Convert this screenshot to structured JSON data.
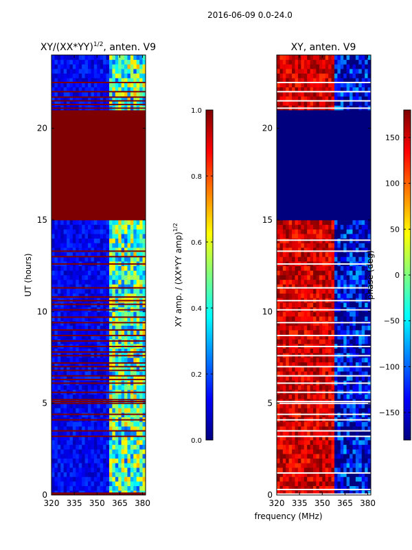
{
  "chart_data": [
    {
      "type": "heatmap",
      "title": "XY/(XX*YY)",
      "title_exp": "1/2",
      "title_suffix": ", anten. V9",
      "xlabel": "frequency (MHz)",
      "ylabel": "UT (hours)",
      "xlim": [
        320,
        382
      ],
      "ylim": [
        0,
        24
      ],
      "xticks": [
        "320",
        "335",
        "350",
        "365",
        "380"
      ],
      "xtick_values": [
        320,
        335,
        350,
        365,
        380
      ],
      "yticks": [
        "0",
        "5",
        "10",
        "15",
        "20"
      ],
      "ytick_values": [
        0,
        5,
        10,
        15,
        20
      ],
      "colorbar": {
        "label": "XY amp. / (XX*YY amp)",
        "label_exp": "1/2",
        "range": [
          0.0,
          1.0
        ],
        "ticks": [
          "0.0",
          "0.2",
          "0.4",
          "0.6",
          "0.8",
          "1.0"
        ],
        "tick_values": [
          0.0,
          0.2,
          0.4,
          0.6,
          0.8,
          1.0
        ]
      },
      "saturated_block_hours": [
        15.0,
        20.8
      ],
      "saturated_value": 1.0,
      "flagged_hours": [
        0.05,
        0.1,
        3.2,
        3.5,
        4.1,
        4.4,
        5.0,
        5.1,
        5.2,
        5.6,
        6.1,
        6.3,
        6.5,
        6.8,
        7.0,
        7.2,
        7.6,
        7.8,
        8.1,
        8.4,
        8.7,
        9.0,
        9.4,
        9.7,
        10.1,
        10.4,
        10.6,
        10.8,
        11.3,
        12.6,
        13.0,
        13.3,
        21.1,
        21.3,
        21.5,
        21.7,
        22.0,
        22.5
      ],
      "low_band_mhz": [
        320,
        357
      ],
      "low_band_typical_value": 0.12,
      "high_band_mhz": [
        357,
        382
      ],
      "high_band_typical_value": 0.45
    },
    {
      "type": "heatmap",
      "title": "XY, anten. V9",
      "xlabel": "frequency (MHz)",
      "ylabel": "",
      "xlim": [
        320,
        382
      ],
      "ylim": [
        0,
        24
      ],
      "xticks": [
        "320",
        "335",
        "350",
        "365",
        "380"
      ],
      "xtick_values": [
        320,
        335,
        350,
        365,
        380
      ],
      "yticks": [
        "0",
        "5",
        "10",
        "15",
        "20"
      ],
      "ytick_values": [
        0,
        5,
        10,
        15,
        20
      ],
      "colorbar": {
        "label": "phase (deg)",
        "range": [
          -180,
          180
        ],
        "ticks": [
          "−150",
          "−100",
          "−50",
          "0",
          "50",
          "100",
          "150"
        ],
        "tick_values": [
          -150,
          -100,
          -50,
          0,
          50,
          100,
          150
        ]
      },
      "blank_block_hours": [
        15.0,
        20.8
      ],
      "blank_value": -180,
      "flagged_hours": [
        0.05,
        0.3,
        1.2,
        3.2,
        3.5,
        4.1,
        4.4,
        5.0,
        5.1,
        5.6,
        6.1,
        6.5,
        7.0,
        7.6,
        8.1,
        8.7,
        9.4,
        10.1,
        10.6,
        11.3,
        12.6,
        13.3,
        13.9,
        21.1,
        21.5,
        22.0,
        22.5
      ],
      "low_band_mhz": [
        320,
        357
      ],
      "low_band_typical_phase_deg": 150,
      "high_band_mhz": [
        357,
        382
      ],
      "high_band_typical_phase_deg": -150
    }
  ],
  "header": {
    "date_range": "2016-06-09 0.0-24.0"
  },
  "colormap": [
    "#00007f",
    "#0000ff",
    "#007fff",
    "#00ffff",
    "#7fff7f",
    "#ffff00",
    "#ff7f00",
    "#ff0000",
    "#7f0000"
  ]
}
